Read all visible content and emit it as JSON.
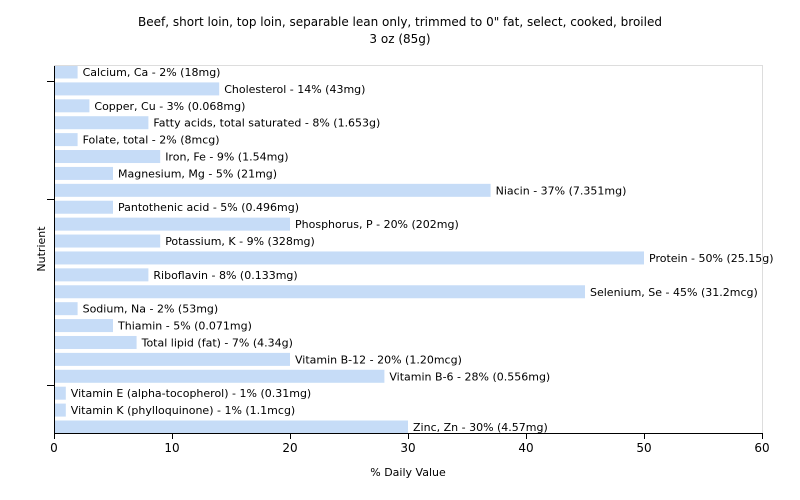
{
  "chart_data": {
    "type": "bar",
    "orientation": "horizontal",
    "title": "Beef, short loin, top loin, separable lean only, trimmed to 0\" fat, select, cooked, broiled",
    "subtitle": "3 oz (85g)",
    "xlabel": "% Daily Value",
    "ylabel": "Nutrient",
    "xlim": [
      0,
      60
    ],
    "xticks": [
      0,
      10,
      20,
      30,
      40,
      50,
      60
    ],
    "grid": false,
    "bar_color": "#c6dcf7",
    "categories": [
      "Calcium, Ca",
      "Cholesterol",
      "Copper, Cu",
      "Fatty acids, total saturated",
      "Folate, total",
      "Iron, Fe",
      "Magnesium, Mg",
      "Niacin",
      "Pantothenic acid",
      "Phosphorus, P",
      "Potassium, K",
      "Protein",
      "Riboflavin",
      "Selenium, Se",
      "Sodium, Na",
      "Thiamin",
      "Total lipid (fat)",
      "Vitamin B-12",
      "Vitamin B-6",
      "Vitamin E (alpha-tocopherol)",
      "Vitamin K (phylloquinone)",
      "Zinc, Zn"
    ],
    "values": [
      2,
      14,
      3,
      8,
      2,
      9,
      5,
      37,
      5,
      20,
      9,
      50,
      8,
      45,
      2,
      5,
      7,
      20,
      28,
      1,
      1,
      30
    ],
    "labels": [
      "Calcium, Ca - 2% (18mg)",
      "Cholesterol - 14% (43mg)",
      "Copper, Cu - 3% (0.068mg)",
      "Fatty acids, total saturated - 8% (1.653g)",
      "Folate, total - 2% (8mcg)",
      "Iron, Fe - 9% (1.54mg)",
      "Magnesium, Mg - 5% (21mg)",
      "Niacin - 37% (7.351mg)",
      "Pantothenic acid - 5% (0.496mg)",
      "Phosphorus, P - 20% (202mg)",
      "Potassium, K - 9% (328mg)",
      "Protein - 50% (25.15g)",
      "Riboflavin - 8% (0.133mg)",
      "Selenium, Se - 45% (31.2mcg)",
      "Sodium, Na - 2% (53mg)",
      "Thiamin - 5% (0.071mg)",
      "Total lipid (fat) - 7% (4.34g)",
      "Vitamin B-12 - 20% (1.20mcg)",
      "Vitamin B-6 - 28% (0.556mg)",
      "Vitamin E (alpha-tocopherol) - 1% (0.31mg)",
      "Vitamin K (phylloquinone) - 1% (1.1mcg)",
      "Zinc, Zn - 30% (4.57mg)"
    ]
  }
}
